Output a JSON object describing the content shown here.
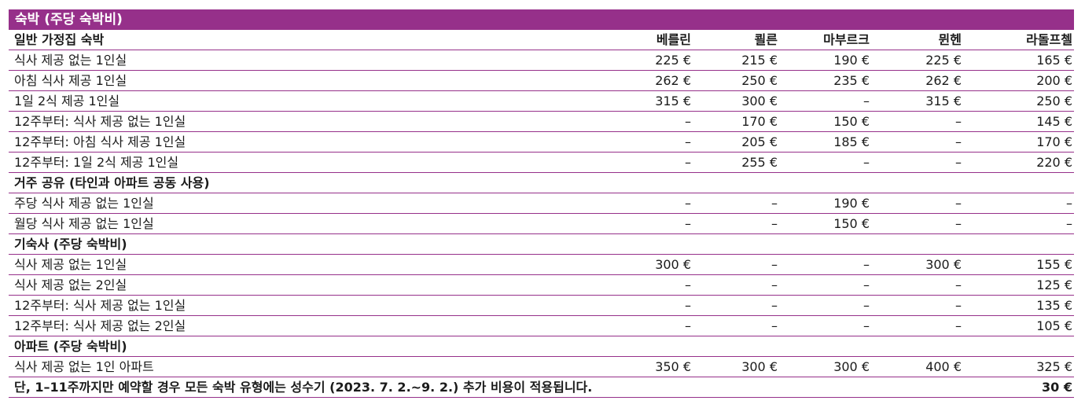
{
  "title": "숙박 (주당 숙박비)",
  "columns": [
    "베를린",
    "쾰른",
    "마부르크",
    "뮌헨",
    "라돌프첼"
  ],
  "sections": [
    {
      "heading": "일반 가정집 숙박",
      "show_columns": true,
      "rows": [
        {
          "label": "식사 제공 없는 1인실",
          "values": [
            "225 €",
            "215 €",
            "190 €",
            "225 €",
            "165 €"
          ]
        },
        {
          "label": "아침 식사 제공 1인실",
          "values": [
            "262 €",
            "250 €",
            "235 €",
            "262 €",
            "200 €"
          ]
        },
        {
          "label": "1일 2식 제공 1인실",
          "values": [
            "315 €",
            "300 €",
            "–",
            "315 €",
            "250 €"
          ]
        },
        {
          "label": "12주부터: 식사 제공 없는 1인실",
          "values": [
            "–",
            "170 €",
            "150 €",
            "–",
            "145 €"
          ]
        },
        {
          "label": "12주부터: 아침 식사 제공 1인실",
          "values": [
            "–",
            "205 €",
            "185 €",
            "–",
            "170 €"
          ]
        },
        {
          "label": "12주부터: 1일 2식 제공 1인실",
          "values": [
            "–",
            "255 €",
            "–",
            "–",
            "220 €"
          ]
        }
      ]
    },
    {
      "heading": "거주 공유 (타인과 아파트 공동 사용)",
      "show_columns": false,
      "rows": [
        {
          "label": "주당 식사 제공 없는 1인실",
          "values": [
            "–",
            "–",
            "190 €",
            "–",
            "–"
          ]
        },
        {
          "label": "월당 식사 제공 없는 1인실",
          "values": [
            "–",
            "–",
            "150 €",
            "–",
            "–"
          ]
        }
      ]
    },
    {
      "heading": "기숙사 (주당 숙박비)",
      "show_columns": false,
      "rows": [
        {
          "label": "식사 제공 없는 1인실",
          "values": [
            "300 €",
            "–",
            "–",
            "300 €",
            "155 €"
          ]
        },
        {
          "label": "식사 제공 없는 2인실",
          "values": [
            "–",
            "–",
            "–",
            "–",
            "125 €"
          ]
        },
        {
          "label": "12주부터: 식사 제공 없는 1인실",
          "values": [
            "–",
            "–",
            "–",
            "–",
            "135 €"
          ]
        },
        {
          "label": "12주부터: 식사 제공 없는 2인실",
          "values": [
            "–",
            "–",
            "–",
            "–",
            "105 €"
          ]
        }
      ]
    },
    {
      "heading": "아파트 (주당 숙박비)",
      "show_columns": false,
      "rows": [
        {
          "label": "식사 제공 없는 1인 아파트",
          "values": [
            "350 €",
            "300 €",
            "300 €",
            "400 €",
            "325 €"
          ]
        }
      ]
    }
  ],
  "note": {
    "label": "단, 1–11주까지만 예약할 경우 모든 숙박 유형에는 성수기 (2023. 7. 2.~9. 2.) 추가 비용이 적용됩니다.",
    "value": "30 €"
  }
}
